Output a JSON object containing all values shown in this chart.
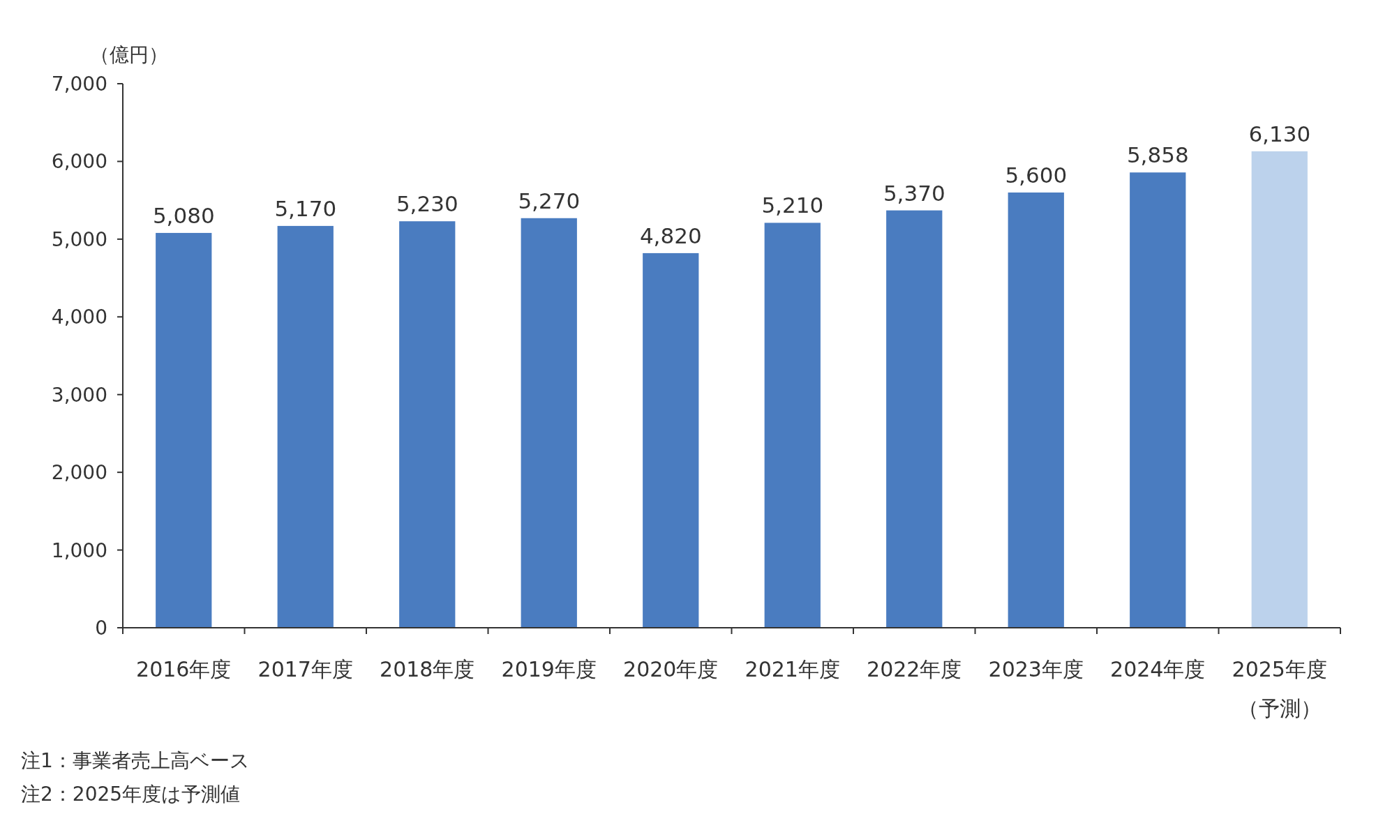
{
  "chart_data": {
    "type": "bar",
    "ylabel": "（億円）",
    "categories": [
      "2016年度",
      "2017年度",
      "2018年度",
      "2019年度",
      "2020年度",
      "2021年度",
      "2022年度",
      "2023年度",
      "2024年度",
      "2025年度（予測）"
    ],
    "values": [
      5080,
      5170,
      5230,
      5270,
      4820,
      5210,
      5370,
      5600,
      5858,
      6130
    ],
    "value_labels": [
      "5,080",
      "5,170",
      "5,230",
      "5,270",
      "4,820",
      "5,210",
      "5,370",
      "5,600",
      "5,858",
      "6,130"
    ],
    "colors": [
      "#4a7cc0",
      "#4a7cc0",
      "#4a7cc0",
      "#4a7cc0",
      "#4a7cc0",
      "#4a7cc0",
      "#4a7cc0",
      "#4a7cc0",
      "#4a7cc0",
      "#bcd2ec"
    ],
    "ylim": [
      0,
      7000
    ],
    "yticks": [
      0,
      {
        "value": 1000,
        "label": "1,000"
      },
      {
        "value": 2000,
        "label": "2,000"
      },
      {
        "value": 3000,
        "label": "3,000"
      },
      {
        "value": 4000,
        "label": "4,000"
      },
      {
        "value": 5000,
        "label": "5,000"
      },
      {
        "value": 6000,
        "label": "6,000"
      },
      {
        "value": 7000,
        "label": "7,000"
      }
    ],
    "annotations": [
      "注1：事業者売上高ベース",
      "注2：2025年度は予測値"
    ]
  }
}
